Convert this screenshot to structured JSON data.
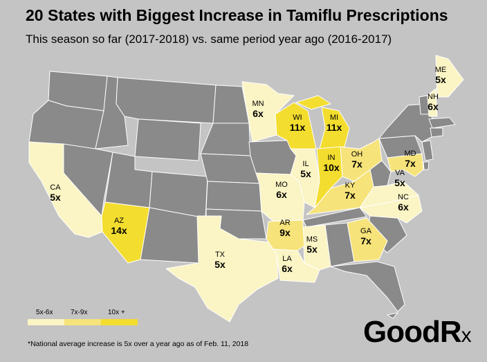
{
  "title": "20 States with Biggest Increase in Tamiflu Prescriptions",
  "subtitle": "This season so far (2017-2018) vs. same period year ago (2016-2017)",
  "colors": {
    "background": "#c4c4c4",
    "states_other": "#8a8a8a",
    "border": "#ffffff",
    "low": "#fbf4c4",
    "mid": "#f6e37a",
    "high": "#f3dd2e"
  },
  "legend": [
    {
      "label": "5x-6x",
      "color": "#fbf4c4"
    },
    {
      "label": "7x-9x",
      "color": "#f6e37a"
    },
    {
      "label": "10x +",
      "color": "#f3dd2e"
    }
  ],
  "states": [
    {
      "abbr": "WI",
      "value": "11x",
      "tier": "high"
    },
    {
      "abbr": "MI",
      "value": "11x",
      "tier": "high"
    },
    {
      "abbr": "IN",
      "value": "10x",
      "tier": "high"
    },
    {
      "abbr": "AZ",
      "value": "14x",
      "tier": "high"
    },
    {
      "abbr": "OH",
      "value": "7x",
      "tier": "mid"
    },
    {
      "abbr": "KY",
      "value": "7x",
      "tier": "mid"
    },
    {
      "abbr": "MD",
      "value": "7x",
      "tier": "mid"
    },
    {
      "abbr": "AR",
      "value": "9x",
      "tier": "mid"
    },
    {
      "abbr": "GA",
      "value": "7x",
      "tier": "mid"
    },
    {
      "abbr": "ME",
      "value": "5x",
      "tier": "low"
    },
    {
      "abbr": "NH",
      "value": "6x",
      "tier": "low"
    },
    {
      "abbr": "MN",
      "value": "6x",
      "tier": "low"
    },
    {
      "abbr": "IL",
      "value": "5x",
      "tier": "low"
    },
    {
      "abbr": "MO",
      "value": "6x",
      "tier": "low"
    },
    {
      "abbr": "CA",
      "value": "5x",
      "tier": "low"
    },
    {
      "abbr": "VA",
      "value": "5x",
      "tier": "low"
    },
    {
      "abbr": "NC",
      "value": "6x",
      "tier": "low"
    },
    {
      "abbr": "TX",
      "value": "5x",
      "tier": "low"
    },
    {
      "abbr": "MS",
      "value": "5x",
      "tier": "low"
    },
    {
      "abbr": "LA",
      "value": "6x",
      "tier": "low"
    }
  ],
  "footnote": "*National average increase is 5x over a year ago as of Feb. 11, 2018",
  "logo": {
    "main": "GoodR",
    "suffix": "x"
  }
}
